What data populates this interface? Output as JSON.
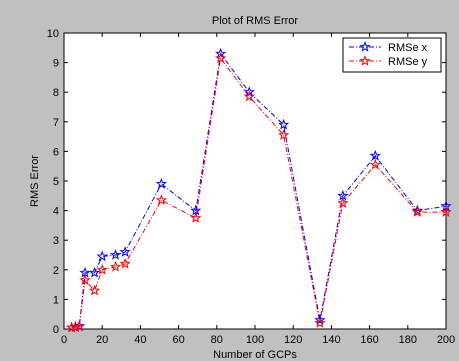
{
  "chart_data": {
    "type": "line",
    "title": "Plot of RMS Error",
    "xlabel": "Number of GCPs",
    "ylabel": "RMS Error",
    "xlim": [
      0,
      200
    ],
    "ylim": [
      0,
      10
    ],
    "x_ticks": [
      0,
      20,
      40,
      60,
      80,
      100,
      120,
      140,
      160,
      180,
      200
    ],
    "y_ticks": [
      0,
      1,
      2,
      3,
      4,
      5,
      6,
      7,
      8,
      9,
      10
    ],
    "grid": false,
    "legend_position": "top-right",
    "series": [
      {
        "name": "RMSe x",
        "color": "#0000ff",
        "linestyle": "dash-dot",
        "marker": "star",
        "x": [
          4,
          6,
          8,
          11,
          16,
          20,
          27,
          32,
          51,
          69,
          82,
          97,
          115,
          134,
          146,
          163,
          185,
          200
        ],
        "y": [
          0.05,
          0.07,
          0.1,
          1.9,
          1.9,
          2.45,
          2.5,
          2.6,
          4.9,
          4.0,
          9.3,
          8.0,
          6.9,
          0.3,
          4.5,
          5.85,
          4.0,
          4.15
        ]
      },
      {
        "name": "RMSe y",
        "color": "#ff0000",
        "linestyle": "dash-dot",
        "marker": "star",
        "x": [
          4,
          6,
          8,
          11,
          16,
          20,
          27,
          32,
          51,
          69,
          82,
          97,
          115,
          134,
          146,
          163,
          185,
          200
        ],
        "y": [
          0.05,
          0.06,
          0.08,
          1.65,
          1.3,
          2.0,
          2.1,
          2.2,
          4.35,
          3.75,
          9.15,
          7.85,
          6.55,
          0.2,
          4.25,
          5.55,
          3.95,
          3.95
        ]
      }
    ]
  }
}
